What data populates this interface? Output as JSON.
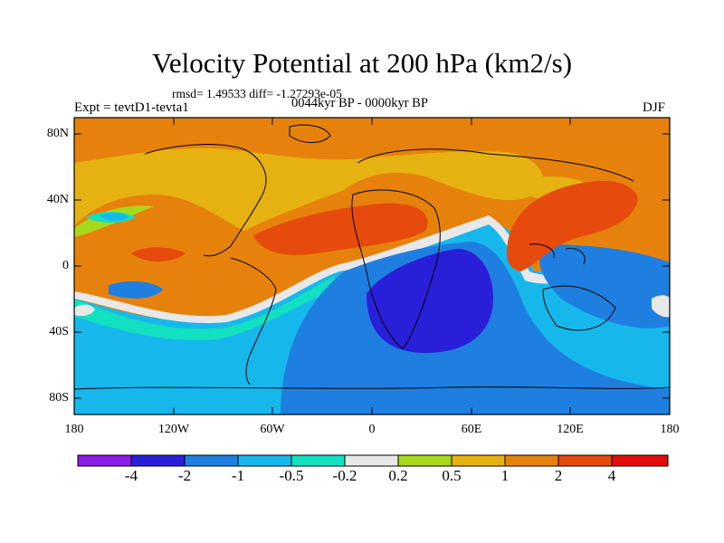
{
  "title": "Velocity Potential at 200 hPa (km2/s)",
  "stats": "rmsd= 1.49533 diff= -1.27293e-05",
  "experiment": "Expt = tevtD1-tevta1",
  "period": "0044kyr BP - 0000kyr BP",
  "season": "DJF",
  "map": {
    "projection": "cylindrical-equidistant",
    "lat_ticks": [
      "80N",
      "40N",
      "0",
      "40S",
      "80S"
    ],
    "lon_ticks": [
      "180",
      "120W",
      "60W",
      "0",
      "60E",
      "120E",
      "180"
    ]
  },
  "colorbar": {
    "levels": [
      "-4",
      "-2",
      "-1",
      "-0.5",
      "-0.2",
      "0.2",
      "0.5",
      "1",
      "2",
      "4"
    ],
    "colors": [
      "#8a1ee6",
      "#2a1fd8",
      "#1f7fe0",
      "#16b8ec",
      "#12e0c0",
      "#e8e8e8",
      "#a8d81c",
      "#e6b212",
      "#e6820c",
      "#e64a0c",
      "#e00c0c"
    ]
  }
}
